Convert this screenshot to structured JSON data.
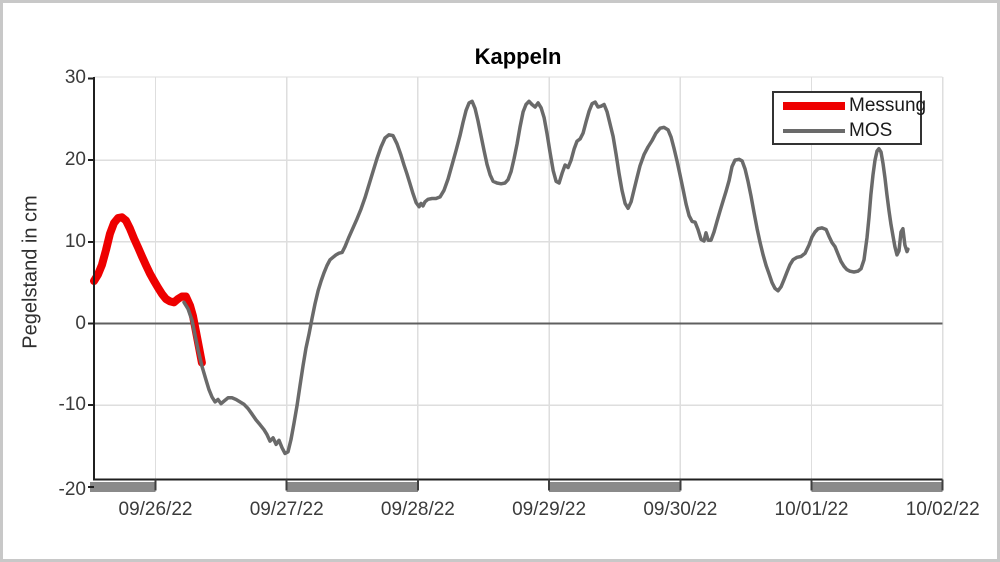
{
  "figure": {
    "background": "#ffffff",
    "frame_color": "#c8c8c8"
  },
  "chart_data": {
    "type": "line",
    "title": "Kappeln",
    "xlabel": "",
    "ylabel": "Pegelstand in cm",
    "ylim": [
      -20,
      30
    ],
    "x_unit": "days since 09/26/22 00:00",
    "x_range_days": [
      -0.469,
      6
    ],
    "grid": true,
    "y_ticks": [
      {
        "value": 30,
        "label": "30",
        "gridline": false
      },
      {
        "value": 20,
        "label": "20",
        "gridline": true
      },
      {
        "value": 10,
        "label": "10",
        "gridline": true
      },
      {
        "value": 0,
        "label": "0",
        "gridline": false
      },
      {
        "value": -10,
        "label": "-10",
        "gridline": true
      },
      {
        "value": -20,
        "label": "-20",
        "gridline": false
      }
    ],
    "x_ticks": [
      {
        "t": 0,
        "label": "09/26/22"
      },
      {
        "t": 1,
        "label": "09/27/22"
      },
      {
        "t": 2,
        "label": "09/28/22"
      },
      {
        "t": 3,
        "label": "09/29/22"
      },
      {
        "t": 4,
        "label": "09/30/22"
      },
      {
        "t": 5,
        "label": "10/01/22"
      },
      {
        "t": 6,
        "label": "10/02/22"
      }
    ],
    "zero_line": {
      "value": 0,
      "color": "#5f5f5f"
    },
    "day_bars": {
      "color": "#8a8a8a",
      "ranges_days": [
        [
          -0.499,
          0
        ],
        [
          1,
          2
        ],
        [
          3,
          4
        ],
        [
          5,
          6
        ]
      ]
    },
    "plot_colors": {
      "grid": "#dedede",
      "axis": "#1f1f1f",
      "tick_text": "#3b3b3b"
    },
    "legend": {
      "position": "top-right",
      "entries": [
        {
          "name": "Messung",
          "color": "#ee0000"
        },
        {
          "name": "MOS",
          "color": "#6a6a6a"
        }
      ]
    },
    "series": [
      {
        "name": "Messung",
        "color": "#ee0000",
        "line_width": 8,
        "points": [
          [
            -0.469,
            5.2
          ],
          [
            -0.438,
            6.0
          ],
          [
            -0.408,
            7.2
          ],
          [
            -0.377,
            9.0
          ],
          [
            -0.347,
            11.0
          ],
          [
            -0.316,
            12.3
          ],
          [
            -0.286,
            12.9
          ],
          [
            -0.255,
            13.0
          ],
          [
            -0.225,
            12.6
          ],
          [
            -0.194,
            11.6
          ],
          [
            -0.164,
            10.4
          ],
          [
            -0.133,
            9.3
          ],
          [
            -0.103,
            8.2
          ],
          [
            -0.072,
            7.1
          ],
          [
            -0.042,
            6.1
          ],
          [
            -0.011,
            5.2
          ],
          [
            0.019,
            4.4
          ],
          [
            0.05,
            3.6
          ],
          [
            0.08,
            3.0
          ],
          [
            0.111,
            2.7
          ],
          [
            0.141,
            2.6
          ],
          [
            0.171,
            3.0
          ],
          [
            0.202,
            3.3
          ],
          [
            0.232,
            3.3
          ],
          [
            0.263,
            2.2
          ],
          [
            0.286,
            0.9
          ],
          [
            0.309,
            -1.0
          ],
          [
            0.332,
            -3.0
          ],
          [
            0.354,
            -4.8
          ]
        ]
      },
      {
        "name": "MOS",
        "color": "#6a6a6a",
        "line_width": 3.5,
        "points": [
          [
            0.217,
            2.6
          ],
          [
            0.248,
            1.8
          ],
          [
            0.278,
            0.4
          ],
          [
            0.301,
            -1.4
          ],
          [
            0.324,
            -3.2
          ],
          [
            0.354,
            -5.2
          ],
          [
            0.385,
            -6.9
          ],
          [
            0.408,
            -8.1
          ],
          [
            0.431,
            -9.0
          ],
          [
            0.454,
            -9.6
          ],
          [
            0.476,
            -9.3
          ],
          [
            0.499,
            -9.8
          ],
          [
            0.522,
            -9.5
          ],
          [
            0.553,
            -9.1
          ],
          [
            0.583,
            -9.1
          ],
          [
            0.614,
            -9.3
          ],
          [
            0.644,
            -9.6
          ],
          [
            0.675,
            -9.9
          ],
          [
            0.705,
            -10.4
          ],
          [
            0.736,
            -11.1
          ],
          [
            0.766,
            -11.8
          ],
          [
            0.797,
            -12.4
          ],
          [
            0.827,
            -13.0
          ],
          [
            0.85,
            -13.6
          ],
          [
            0.873,
            -14.4
          ],
          [
            0.896,
            -14.0
          ],
          [
            0.919,
            -14.8
          ],
          [
            0.941,
            -14.3
          ],
          [
            0.964,
            -15.2
          ],
          [
            0.987,
            -15.9
          ],
          [
            1.01,
            -15.7
          ],
          [
            1.033,
            -14.2
          ],
          [
            1.056,
            -12.2
          ],
          [
            1.079,
            -10.0
          ],
          [
            1.101,
            -7.6
          ],
          [
            1.124,
            -5.2
          ],
          [
            1.147,
            -3.0
          ],
          [
            1.17,
            -1.3
          ],
          [
            1.193,
            0.6
          ],
          [
            1.216,
            2.4
          ],
          [
            1.239,
            4.0
          ],
          [
            1.262,
            5.2
          ],
          [
            1.284,
            6.2
          ],
          [
            1.307,
            7.1
          ],
          [
            1.33,
            7.8
          ],
          [
            1.353,
            8.1
          ],
          [
            1.376,
            8.4
          ],
          [
            1.399,
            8.6
          ],
          [
            1.422,
            8.7
          ],
          [
            1.444,
            9.4
          ],
          [
            1.475,
            10.6
          ],
          [
            1.505,
            11.7
          ],
          [
            1.536,
            12.8
          ],
          [
            1.566,
            14.0
          ],
          [
            1.597,
            15.4
          ],
          [
            1.627,
            17.0
          ],
          [
            1.658,
            18.6
          ],
          [
            1.688,
            20.2
          ],
          [
            1.719,
            21.6
          ],
          [
            1.749,
            22.7
          ],
          [
            1.78,
            23.1
          ],
          [
            1.81,
            23.0
          ],
          [
            1.841,
            22.0
          ],
          [
            1.871,
            20.6
          ],
          [
            1.894,
            19.4
          ],
          [
            1.917,
            18.3
          ],
          [
            1.94,
            17.1
          ],
          [
            1.963,
            15.9
          ],
          [
            1.986,
            14.8
          ],
          [
            2.009,
            14.3
          ],
          [
            2.024,
            14.7
          ],
          [
            2.039,
            14.4
          ],
          [
            2.054,
            14.9
          ],
          [
            2.077,
            15.2
          ],
          [
            2.108,
            15.3
          ],
          [
            2.138,
            15.3
          ],
          [
            2.169,
            15.5
          ],
          [
            2.199,
            16.3
          ],
          [
            2.23,
            17.7
          ],
          [
            2.26,
            19.4
          ],
          [
            2.291,
            21.2
          ],
          [
            2.321,
            23.0
          ],
          [
            2.344,
            24.6
          ],
          [
            2.367,
            26.1
          ],
          [
            2.39,
            27.0
          ],
          [
            2.413,
            27.2
          ],
          [
            2.436,
            26.3
          ],
          [
            2.458,
            24.8
          ],
          [
            2.481,
            23.0
          ],
          [
            2.504,
            21.2
          ],
          [
            2.527,
            19.5
          ],
          [
            2.55,
            18.2
          ],
          [
            2.573,
            17.4
          ],
          [
            2.603,
            17.2
          ],
          [
            2.634,
            17.1
          ],
          [
            2.664,
            17.2
          ],
          [
            2.687,
            17.6
          ],
          [
            2.71,
            18.6
          ],
          [
            2.733,
            20.2
          ],
          [
            2.756,
            22.0
          ],
          [
            2.779,
            24.1
          ],
          [
            2.802,
            25.9
          ],
          [
            2.824,
            26.8
          ],
          [
            2.847,
            27.2
          ],
          [
            2.87,
            26.8
          ],
          [
            2.893,
            26.5
          ],
          [
            2.916,
            27.0
          ],
          [
            2.939,
            26.4
          ],
          [
            2.962,
            25.2
          ],
          [
            2.985,
            23.2
          ],
          [
            3.008,
            20.9
          ],
          [
            3.031,
            18.7
          ],
          [
            3.053,
            17.4
          ],
          [
            3.076,
            17.2
          ],
          [
            3.099,
            18.4
          ],
          [
            3.122,
            19.4
          ],
          [
            3.145,
            19.1
          ],
          [
            3.168,
            20.0
          ],
          [
            3.191,
            21.4
          ],
          [
            3.213,
            22.3
          ],
          [
            3.236,
            22.6
          ],
          [
            3.259,
            23.3
          ],
          [
            3.282,
            24.7
          ],
          [
            3.305,
            26.0
          ],
          [
            3.328,
            26.9
          ],
          [
            3.351,
            27.1
          ],
          [
            3.373,
            26.5
          ],
          [
            3.396,
            26.6
          ],
          [
            3.419,
            26.8
          ],
          [
            3.442,
            25.9
          ],
          [
            3.465,
            24.4
          ],
          [
            3.488,
            22.9
          ],
          [
            3.511,
            20.7
          ],
          [
            3.533,
            18.4
          ],
          [
            3.556,
            16.3
          ],
          [
            3.579,
            14.7
          ],
          [
            3.602,
            14.1
          ],
          [
            3.625,
            14.9
          ],
          [
            3.648,
            16.4
          ],
          [
            3.671,
            17.9
          ],
          [
            3.693,
            19.3
          ],
          [
            3.724,
            20.7
          ],
          [
            3.754,
            21.6
          ],
          [
            3.785,
            22.4
          ],
          [
            3.815,
            23.3
          ],
          [
            3.846,
            23.9
          ],
          [
            3.876,
            24.0
          ],
          [
            3.907,
            23.7
          ],
          [
            3.93,
            22.8
          ],
          [
            3.953,
            21.4
          ],
          [
            3.975,
            19.9
          ],
          [
            3.998,
            18.2
          ],
          [
            4.021,
            16.4
          ],
          [
            4.044,
            14.6
          ],
          [
            4.067,
            13.2
          ],
          [
            4.09,
            12.5
          ],
          [
            4.113,
            12.4
          ],
          [
            4.135,
            11.5
          ],
          [
            4.158,
            10.3
          ],
          [
            4.181,
            10.1
          ],
          [
            4.196,
            11.1
          ],
          [
            4.212,
            10.2
          ],
          [
            4.234,
            10.2
          ],
          [
            4.257,
            11.2
          ],
          [
            4.28,
            12.5
          ],
          [
            4.303,
            13.8
          ],
          [
            4.326,
            15.0
          ],
          [
            4.349,
            16.2
          ],
          [
            4.372,
            17.5
          ],
          [
            4.394,
            19.2
          ],
          [
            4.417,
            20.0
          ],
          [
            4.448,
            20.1
          ],
          [
            4.471,
            19.9
          ],
          [
            4.494,
            18.9
          ],
          [
            4.516,
            17.4
          ],
          [
            4.539,
            15.6
          ],
          [
            4.562,
            13.6
          ],
          [
            4.585,
            11.6
          ],
          [
            4.608,
            9.9
          ],
          [
            4.631,
            8.4
          ],
          [
            4.654,
            7.1
          ],
          [
            4.676,
            6.1
          ],
          [
            4.699,
            5.0
          ],
          [
            4.722,
            4.3
          ],
          [
            4.745,
            4.0
          ],
          [
            4.768,
            4.5
          ],
          [
            4.791,
            5.4
          ],
          [
            4.813,
            6.3
          ],
          [
            4.836,
            7.2
          ],
          [
            4.859,
            7.8
          ],
          [
            4.89,
            8.1
          ],
          [
            4.92,
            8.2
          ],
          [
            4.951,
            8.6
          ],
          [
            4.981,
            9.6
          ],
          [
            5.004,
            10.6
          ],
          [
            5.027,
            11.2
          ],
          [
            5.05,
            11.6
          ],
          [
            5.08,
            11.7
          ],
          [
            5.111,
            11.5
          ],
          [
            5.133,
            10.7
          ],
          [
            5.156,
            9.9
          ],
          [
            5.179,
            9.4
          ],
          [
            5.202,
            8.5
          ],
          [
            5.225,
            7.6
          ],
          [
            5.248,
            7.0
          ],
          [
            5.27,
            6.6
          ],
          [
            5.293,
            6.4
          ],
          [
            5.324,
            6.3
          ],
          [
            5.354,
            6.4
          ],
          [
            5.377,
            6.7
          ],
          [
            5.4,
            7.8
          ],
          [
            5.423,
            10.5
          ],
          [
            5.438,
            13.0
          ],
          [
            5.453,
            15.8
          ],
          [
            5.469,
            18.2
          ],
          [
            5.484,
            20.0
          ],
          [
            5.499,
            21.1
          ],
          [
            5.514,
            21.4
          ],
          [
            5.53,
            21.0
          ],
          [
            5.545,
            19.6
          ],
          [
            5.56,
            17.8
          ],
          [
            5.575,
            15.8
          ],
          [
            5.591,
            13.8
          ],
          [
            5.606,
            12.1
          ],
          [
            5.621,
            10.7
          ],
          [
            5.636,
            9.4
          ],
          [
            5.652,
            8.4
          ],
          [
            5.667,
            8.9
          ],
          [
            5.682,
            11.2
          ],
          [
            5.697,
            11.6
          ],
          [
            5.712,
            9.6
          ],
          [
            5.728,
            8.8
          ],
          [
            5.735,
            9.1
          ]
        ]
      }
    ]
  }
}
